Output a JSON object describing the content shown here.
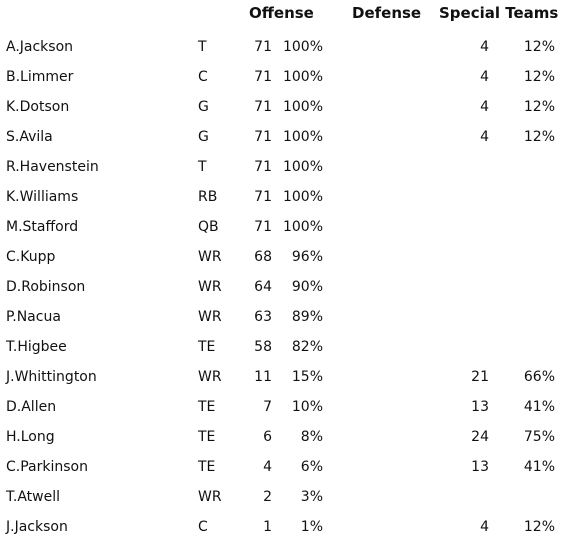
{
  "headers": {
    "offense": "Offense",
    "defense": "Defense",
    "special_teams": "Special Teams"
  },
  "players": [
    {
      "name": "A.Jackson",
      "pos": "T",
      "off_snaps": "71",
      "off_pct": "100%",
      "st_snaps": "4",
      "st_pct": "12%"
    },
    {
      "name": "B.Limmer",
      "pos": "C",
      "off_snaps": "71",
      "off_pct": "100%",
      "st_snaps": "4",
      "st_pct": "12%"
    },
    {
      "name": "K.Dotson",
      "pos": "G",
      "off_snaps": "71",
      "off_pct": "100%",
      "st_snaps": "4",
      "st_pct": "12%"
    },
    {
      "name": "S.Avila",
      "pos": "G",
      "off_snaps": "71",
      "off_pct": "100%",
      "st_snaps": "4",
      "st_pct": "12%"
    },
    {
      "name": "R.Havenstein",
      "pos": "T",
      "off_snaps": "71",
      "off_pct": "100%",
      "st_snaps": "",
      "st_pct": ""
    },
    {
      "name": "K.Williams",
      "pos": "RB",
      "off_snaps": "71",
      "off_pct": "100%",
      "st_snaps": "",
      "st_pct": ""
    },
    {
      "name": "M.Stafford",
      "pos": "QB",
      "off_snaps": "71",
      "off_pct": "100%",
      "st_snaps": "",
      "st_pct": ""
    },
    {
      "name": "C.Kupp",
      "pos": "WR",
      "off_snaps": "68",
      "off_pct": "96%",
      "st_snaps": "",
      "st_pct": ""
    },
    {
      "name": "D.Robinson",
      "pos": "WR",
      "off_snaps": "64",
      "off_pct": "90%",
      "st_snaps": "",
      "st_pct": ""
    },
    {
      "name": "P.Nacua",
      "pos": "WR",
      "off_snaps": "63",
      "off_pct": "89%",
      "st_snaps": "",
      "st_pct": ""
    },
    {
      "name": "T.Higbee",
      "pos": "TE",
      "off_snaps": "58",
      "off_pct": "82%",
      "st_snaps": "",
      "st_pct": ""
    },
    {
      "name": "J.Whittington",
      "pos": "WR",
      "off_snaps": "11",
      "off_pct": "15%",
      "st_snaps": "21",
      "st_pct": "66%"
    },
    {
      "name": "D.Allen",
      "pos": "TE",
      "off_snaps": "7",
      "off_pct": "10%",
      "st_snaps": "13",
      "st_pct": "41%"
    },
    {
      "name": "H.Long",
      "pos": "TE",
      "off_snaps": "6",
      "off_pct": "8%",
      "st_snaps": "24",
      "st_pct": "75%"
    },
    {
      "name": "C.Parkinson",
      "pos": "TE",
      "off_snaps": "4",
      "off_pct": "6%",
      "st_snaps": "13",
      "st_pct": "41%"
    },
    {
      "name": "T.Atwell",
      "pos": "WR",
      "off_snaps": "2",
      "off_pct": "3%",
      "st_snaps": "",
      "st_pct": ""
    },
    {
      "name": "J.Jackson",
      "pos": "C",
      "off_snaps": "1",
      "off_pct": "1%",
      "st_snaps": "4",
      "st_pct": "12%"
    }
  ]
}
